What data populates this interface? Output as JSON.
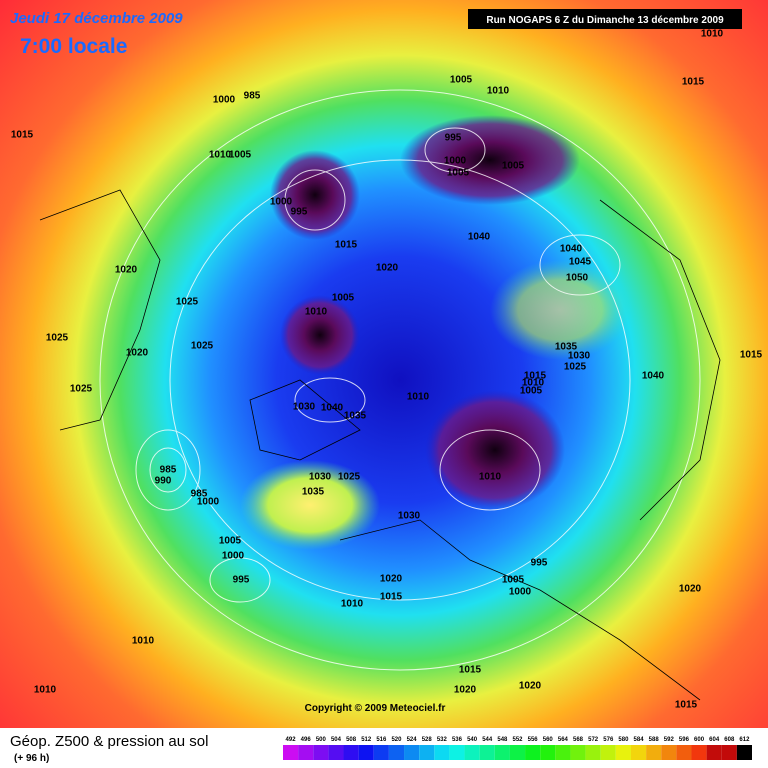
{
  "header": {
    "date": "Jeudi 17 décembre 2009",
    "time": "7:00 locale",
    "run": "Run NOGAPS 6 Z du Dimanche 13 décembre 2009"
  },
  "isobars": [
    1010,
    1015,
    1005,
    1010,
    1000,
    985,
    1015,
    995,
    1000,
    1005,
    1005,
    1010,
    1005,
    1000,
    995,
    1040,
    1015,
    1040,
    1045,
    1020,
    1020,
    1050,
    1005,
    1025,
    1010,
    1025,
    1035,
    1030,
    1020,
    1025,
    1025,
    1015,
    1015,
    1010,
    1005,
    1040,
    1025,
    1010,
    1030,
    1040,
    1035,
    985,
    990,
    1010,
    1030,
    1025,
    1035,
    985,
    1000,
    1030,
    1005,
    1000,
    995,
    995,
    1020,
    1005,
    1000,
    1015,
    1020,
    1010,
    1010,
    1015,
    1020,
    1020,
    1010,
    1015
  ],
  "copyright": "Copyright © 2009 Meteociel.fr",
  "legend": {
    "title": "Géop. Z500 & pression au sol",
    "lead": "(+ 96 h)",
    "scale": [
      492,
      496,
      500,
      504,
      508,
      512,
      516,
      520,
      524,
      528,
      532,
      536,
      540,
      544,
      548,
      552,
      556,
      560,
      564,
      568,
      572,
      576,
      580,
      584,
      588,
      592,
      596,
      600,
      604,
      608,
      612
    ]
  }
}
